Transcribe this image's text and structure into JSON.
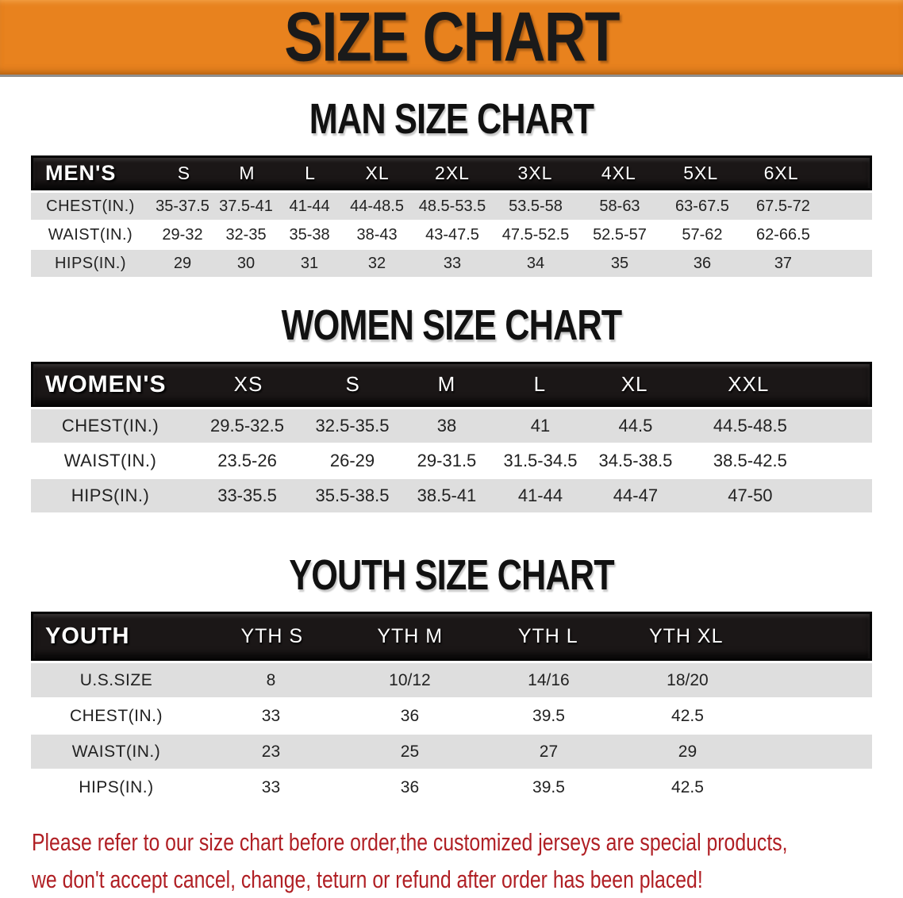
{
  "banner": {
    "title": "SIZE CHART"
  },
  "colors": {
    "banner_bg": "#E8821E",
    "banner_text": "#1A1A1A",
    "header_bar_bg": "#1B1717",
    "header_bar_text": "#FFFFFF",
    "row_stripe": "#DEDEDE",
    "row_white": "#FFFFFF",
    "data_text": "#222222",
    "title_text": "#111111",
    "disclaimer_text": "#B01F24"
  },
  "sections": [
    {
      "id": "men",
      "title": "MAN SIZE CHART",
      "group_label": "MEN'S",
      "columns": [
        "S",
        "M",
        "L",
        "XL",
        "2XL",
        "3XL",
        "4XL",
        "5XL",
        "6XL"
      ],
      "rows": [
        {
          "label": "CHEST(IN.)",
          "values": [
            "35-37.5",
            "37.5-41",
            "41-44",
            "44-48.5",
            "48.5-53.5",
            "53.5-58",
            "58-63",
            "63-67.5",
            "67.5-72"
          ]
        },
        {
          "label": "WAIST(IN.)",
          "values": [
            "29-32",
            "32-35",
            "35-38",
            "38-43",
            "43-47.5",
            "47.5-52.5",
            "52.5-57",
            "57-62",
            "62-66.5"
          ]
        },
        {
          "label": "HIPS(IN.)",
          "values": [
            "29",
            "30",
            "31",
            "32",
            "33",
            "34",
            "35",
            "36",
            "37"
          ]
        }
      ]
    },
    {
      "id": "women",
      "title": "WOMEN SIZE CHART",
      "group_label": "WOMEN'S",
      "columns": [
        "XS",
        "S",
        "M",
        "L",
        "XL",
        "XXL"
      ],
      "rows": [
        {
          "label": "CHEST(IN.)",
          "values": [
            "29.5-32.5",
            "32.5-35.5",
            "38",
            "41",
            "44.5",
            "44.5-48.5"
          ]
        },
        {
          "label": "WAIST(IN.)",
          "values": [
            "23.5-26",
            "26-29",
            "29-31.5",
            "31.5-34.5",
            "34.5-38.5",
            "38.5-42.5"
          ]
        },
        {
          "label": "HIPS(IN.)",
          "values": [
            "33-35.5",
            "35.5-38.5",
            "38.5-41",
            "41-44",
            "44-47",
            "47-50"
          ]
        }
      ]
    },
    {
      "id": "youth",
      "title": "YOUTH SIZE CHART",
      "group_label": "YOUTH",
      "columns": [
        "YTH S",
        "YTH M",
        "YTH L",
        "YTH XL"
      ],
      "rows": [
        {
          "label": "U.S.SIZE",
          "values": [
            "8",
            "10/12",
            "14/16",
            "18/20"
          ]
        },
        {
          "label": "CHEST(IN.)",
          "values": [
            "33",
            "36",
            "39.5",
            "42.5"
          ]
        },
        {
          "label": "WAIST(IN.)",
          "values": [
            "23",
            "25",
            "27",
            "29"
          ]
        },
        {
          "label": "HIPS(IN.)",
          "values": [
            "33",
            "36",
            "39.5",
            "42.5"
          ]
        }
      ]
    }
  ],
  "disclaimer": {
    "lines": [
      "Please refer to our size chart before order,the customized jerseys are special products,",
      "we don't accept cancel, change, teturn or refund after order has been placed!"
    ]
  }
}
